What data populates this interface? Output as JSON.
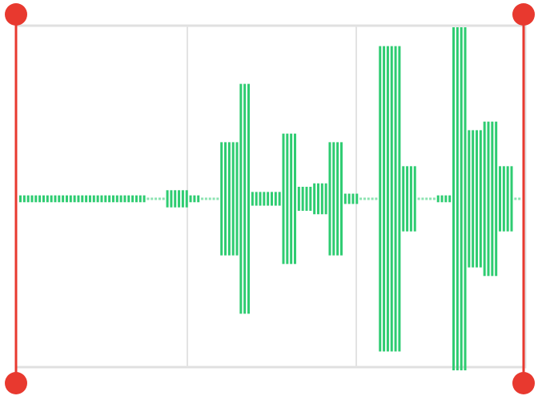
{
  "waveform_editor": {
    "accent_color": "#e8392f",
    "wave_color": "#2ecc71",
    "grid_color": "#e0e0e0",
    "selection": {
      "start": 0.0,
      "end": 1.0
    },
    "handle_icons": [
      "trim-handle-top-left",
      "trim-handle-bottom-left",
      "trim-handle-top-right",
      "trim-handle-bottom-right"
    ],
    "amplitudes": [
      0.02,
      0.02,
      0.02,
      0.02,
      0.02,
      0.02,
      0.02,
      0.02,
      0.02,
      0.02,
      0.02,
      0.02,
      0.02,
      0.02,
      0.02,
      0.02,
      0.02,
      0.02,
      0.02,
      0.02,
      0.02,
      0.02,
      0.02,
      0.02,
      0.02,
      0.02,
      0.02,
      0.02,
      0.02,
      0.02,
      0.02,
      0.02,
      0.02,
      0.005,
      0.005,
      0.005,
      0.005,
      0.005,
      0.05,
      0.05,
      0.05,
      0.05,
      0.05,
      0.05,
      0.02,
      0.02,
      0.02,
      0.005,
      0.005,
      0.005,
      0.005,
      0.005,
      0.33,
      0.33,
      0.33,
      0.33,
      0.33,
      0.67,
      0.67,
      0.67,
      0.04,
      0.04,
      0.04,
      0.04,
      0.04,
      0.04,
      0.04,
      0.04,
      0.38,
      0.38,
      0.38,
      0.38,
      0.07,
      0.07,
      0.07,
      0.07,
      0.09,
      0.09,
      0.09,
      0.09,
      0.33,
      0.33,
      0.33,
      0.33,
      0.03,
      0.03,
      0.03,
      0.03,
      0.005,
      0.005,
      0.005,
      0.005,
      0.005,
      0.89,
      0.89,
      0.89,
      0.89,
      0.89,
      0.89,
      0.19,
      0.19,
      0.19,
      0.19,
      0.005,
      0.005,
      0.005,
      0.005,
      0.005,
      0.02,
      0.02,
      0.02,
      0.02,
      1.0,
      1.0,
      1.0,
      1.0,
      0.4,
      0.4,
      0.4,
      0.4,
      0.45,
      0.45,
      0.45,
      0.45,
      0.19,
      0.19,
      0.19,
      0.19,
      0.005,
      0.005
    ]
  }
}
